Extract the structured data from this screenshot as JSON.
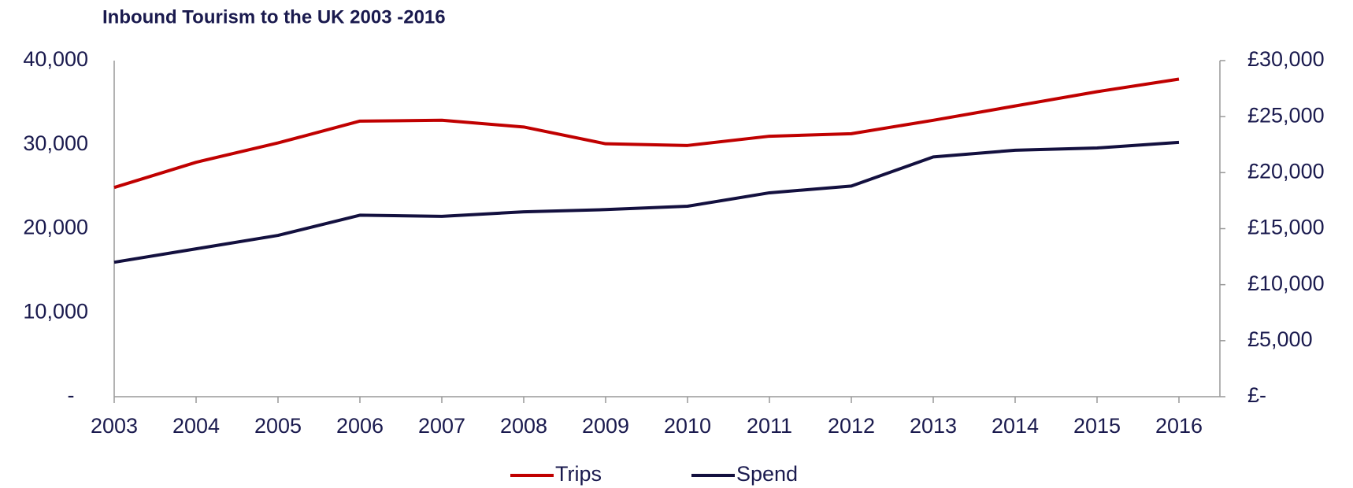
{
  "chart_data": {
    "type": "line",
    "title": "Inbound Tourism to the UK 2003 -2016",
    "categories": [
      "2003",
      "2004",
      "2005",
      "2006",
      "2007",
      "2008",
      "2009",
      "2010",
      "2011",
      "2012",
      "2013",
      "2014",
      "2015",
      "2016"
    ],
    "series": [
      {
        "name": "Trips",
        "color": "#c00000",
        "values": [
          24900,
          27900,
          30200,
          32800,
          32900,
          32100,
          30100,
          29900,
          31000,
          31300,
          32900,
          34600,
          36300,
          37800
        ]
      },
      {
        "name": "Spend",
        "color": "#13103f",
        "axis": "y2",
        "values": [
          12000,
          13200,
          14400,
          16200,
          16100,
          16500,
          16700,
          17000,
          18200,
          18800,
          21400,
          22000,
          22200,
          22700
        ]
      }
    ],
    "ylim": [
      0,
      40000
    ],
    "yticks": [
      {
        "value": 0,
        "label": "-"
      },
      {
        "value": 10000,
        "label": "10,000"
      },
      {
        "value": 20000,
        "label": "20,000"
      },
      {
        "value": 30000,
        "label": "30,000"
      },
      {
        "value": 40000,
        "label": "40,000"
      }
    ],
    "y2lim": [
      0,
      30000
    ],
    "y2ticks": [
      {
        "value": 0,
        "label": "£-"
      },
      {
        "value": 5000,
        "label": "£5,000"
      },
      {
        "value": 10000,
        "label": "£10,000"
      },
      {
        "value": 15000,
        "label": "£15,000"
      },
      {
        "value": 20000,
        "label": "£20,000"
      },
      {
        "value": 25000,
        "label": "£25,000"
      },
      {
        "value": 30000,
        "label": "£30,000"
      }
    ],
    "legend": "bottom",
    "grid": false
  }
}
